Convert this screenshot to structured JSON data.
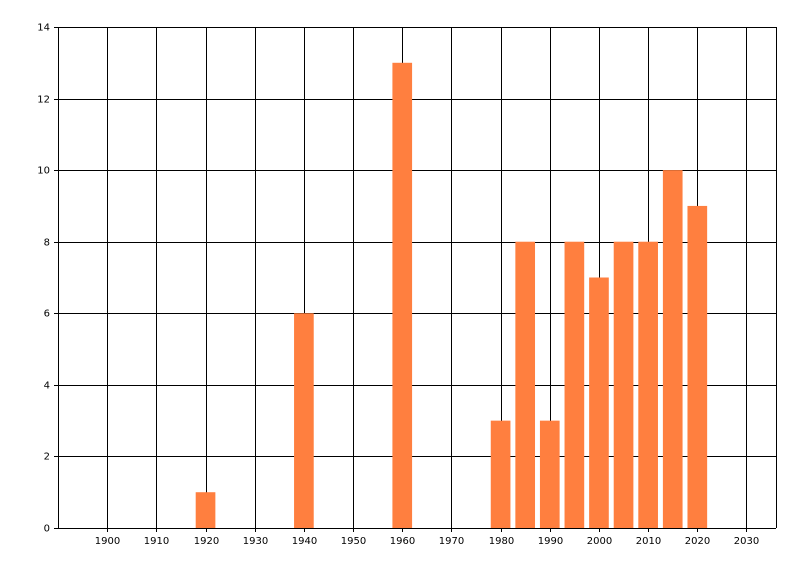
{
  "chart_data": {
    "type": "bar",
    "x": [
      1920,
      1940,
      1960,
      1980,
      1985,
      1990,
      1995,
      2000,
      2005,
      2010,
      2015,
      2020
    ],
    "values": [
      1,
      6,
      13,
      3,
      8,
      3,
      8,
      7,
      8,
      8,
      10,
      9
    ],
    "color": "#ff7f3f",
    "xlim": [
      1890,
      2036
    ],
    "xticks": [
      1900,
      1910,
      1920,
      1930,
      1940,
      1950,
      1960,
      1970,
      1980,
      1990,
      2000,
      2010,
      2020,
      2030
    ],
    "ylim": [
      0,
      14
    ],
    "yticks": [
      0,
      2,
      4,
      6,
      8,
      10,
      12,
      14
    ],
    "grid": true
  }
}
